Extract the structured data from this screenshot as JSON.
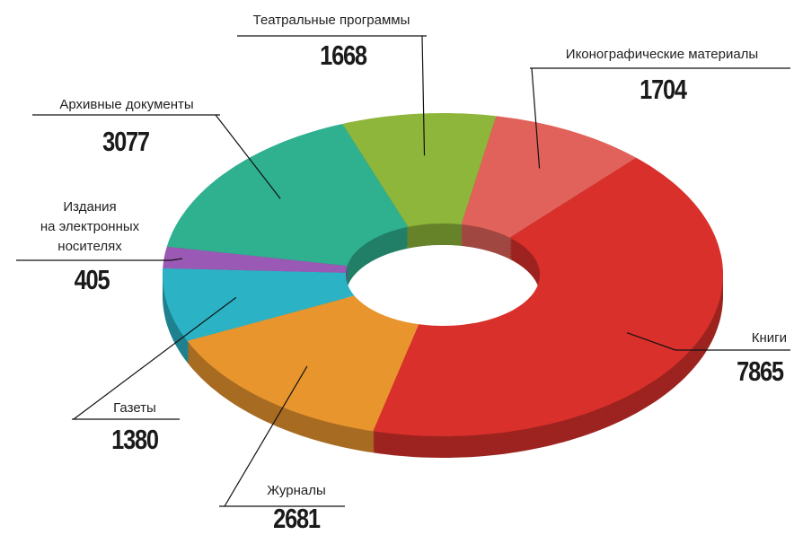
{
  "chart_data": {
    "type": "donut",
    "categories": [
      "Театральные программы",
      "Иконографические материалы",
      "Книги",
      "Журналы",
      "Газеты",
      "Издания\nна электронных\nносителях",
      "Архивные документы"
    ],
    "values": [
      1668,
      1704,
      7865,
      2681,
      1380,
      405,
      3077
    ],
    "colors": [
      "#8db63a",
      "#e0625a",
      "#d9302b",
      "#e8952e",
      "#2bb3c5",
      "#9b59b6",
      "#2fb08f"
    ]
  }
}
